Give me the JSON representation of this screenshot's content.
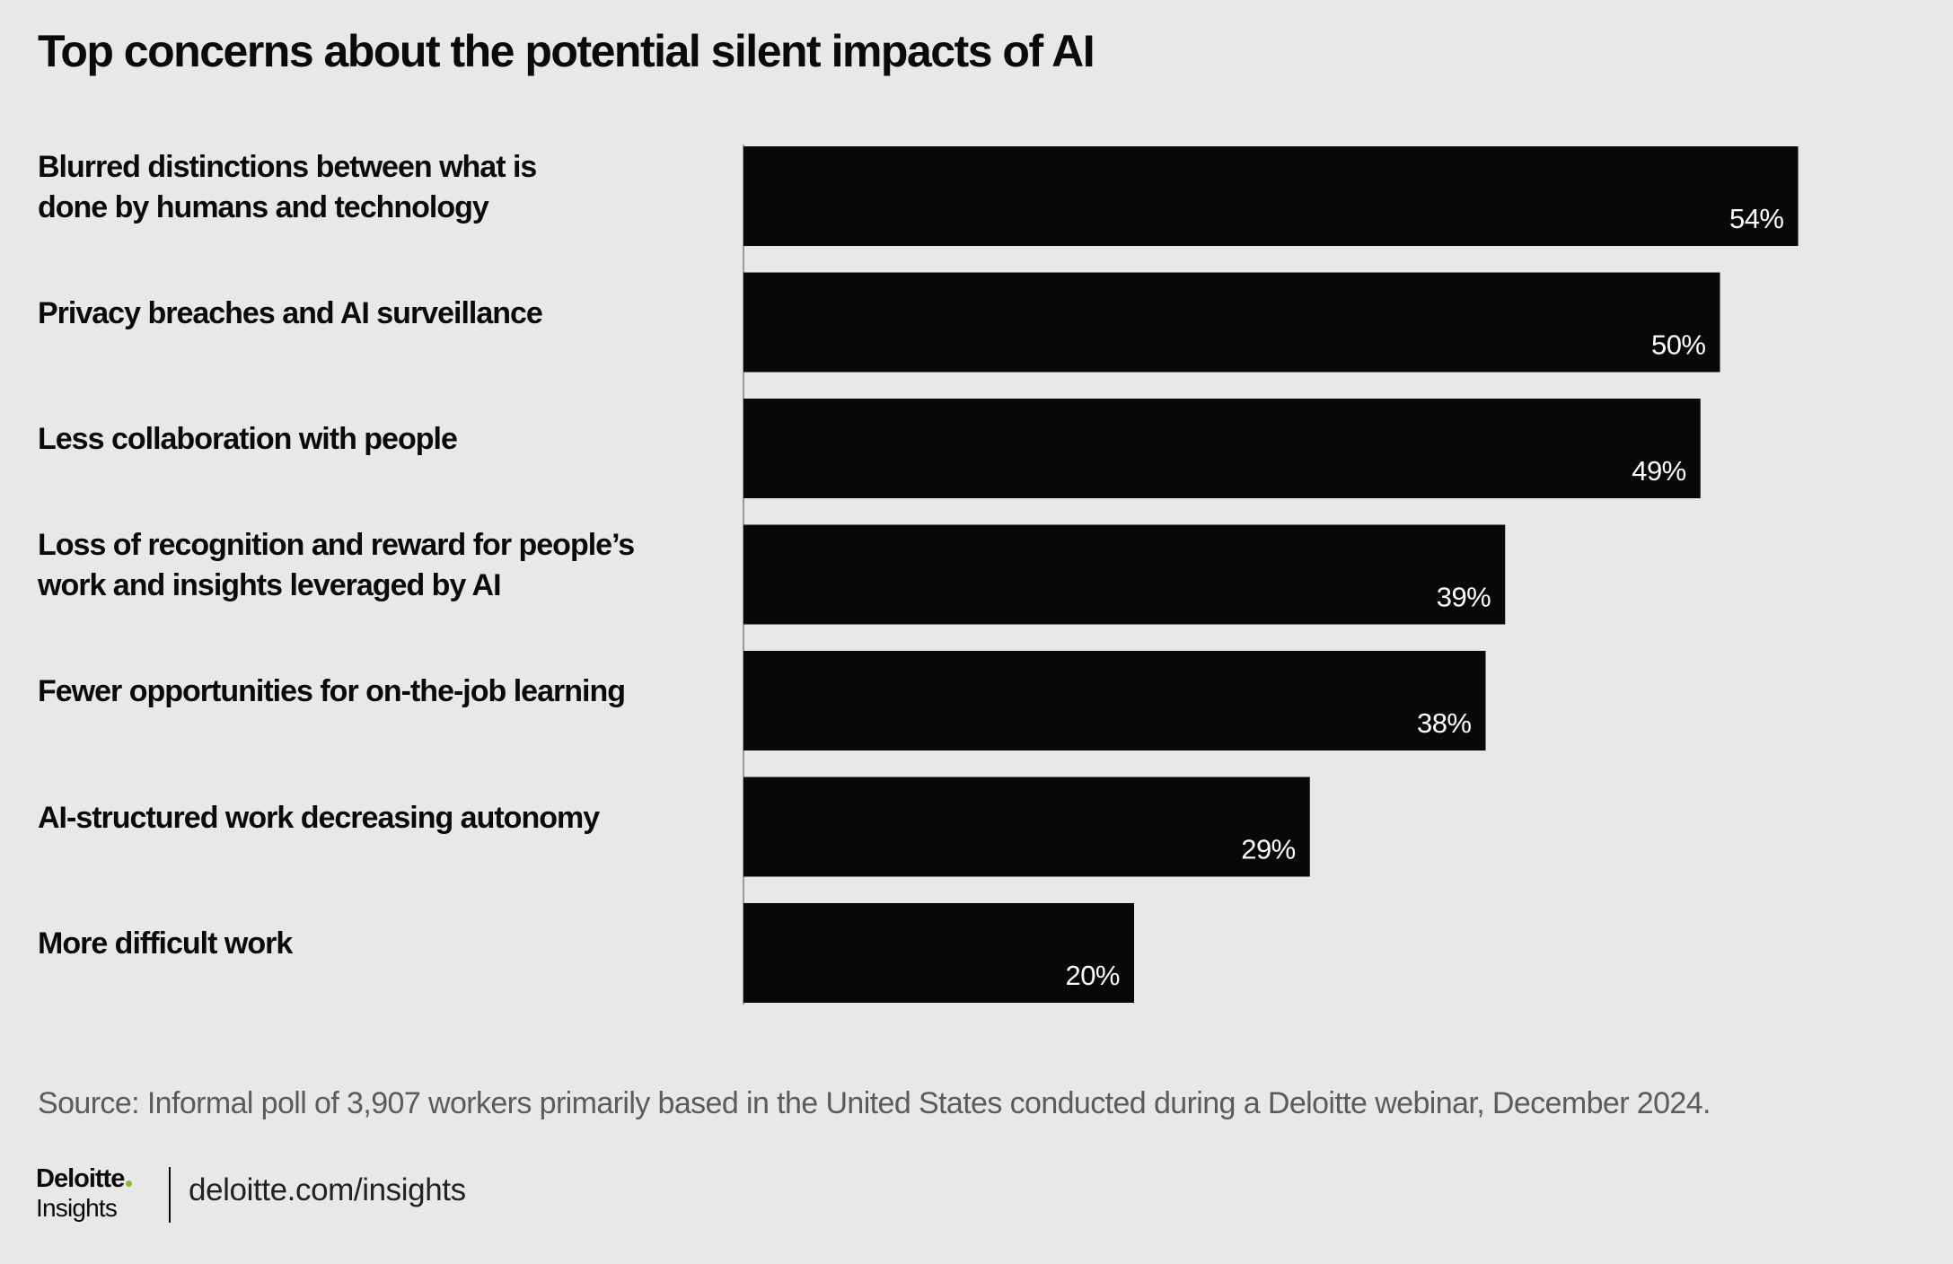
{
  "title": "Top concerns about the potential silent impacts of AI",
  "chart_data": {
    "type": "bar",
    "orientation": "horizontal",
    "categories": [
      "Blurred distinctions between what is\ndone by humans and technology",
      "Privacy breaches and AI surveillance",
      "Less collaboration with people",
      "Loss of recognition and reward for people’s\nwork and insights leveraged by AI",
      "Fewer opportunities for on-the-job learning",
      "AI-structured work decreasing autonomy",
      "More difficult work"
    ],
    "values": [
      54,
      50,
      49,
      39,
      38,
      29,
      20
    ],
    "value_labels": [
      "54%",
      "50%",
      "49%",
      "39%",
      "38%",
      "29%",
      "20%"
    ],
    "unit": "%",
    "xlim": [
      0,
      100
    ],
    "bar_color": "#080808",
    "label_color": "#ffffff",
    "grid": false,
    "legend": "none"
  },
  "source": "Source: Informal poll of 3,907 workers primarily based in the United States conducted during a Deloitte webinar, December 2024.",
  "footer": {
    "logo_brand": "Deloitte",
    "logo_sub": "Insights",
    "website": "deloitte.com/insights"
  },
  "colors": {
    "background": "#e8e9e7",
    "text": "#0a0a0a",
    "source_text": "#5b5b5b",
    "logo_dot": "#86bc25"
  }
}
